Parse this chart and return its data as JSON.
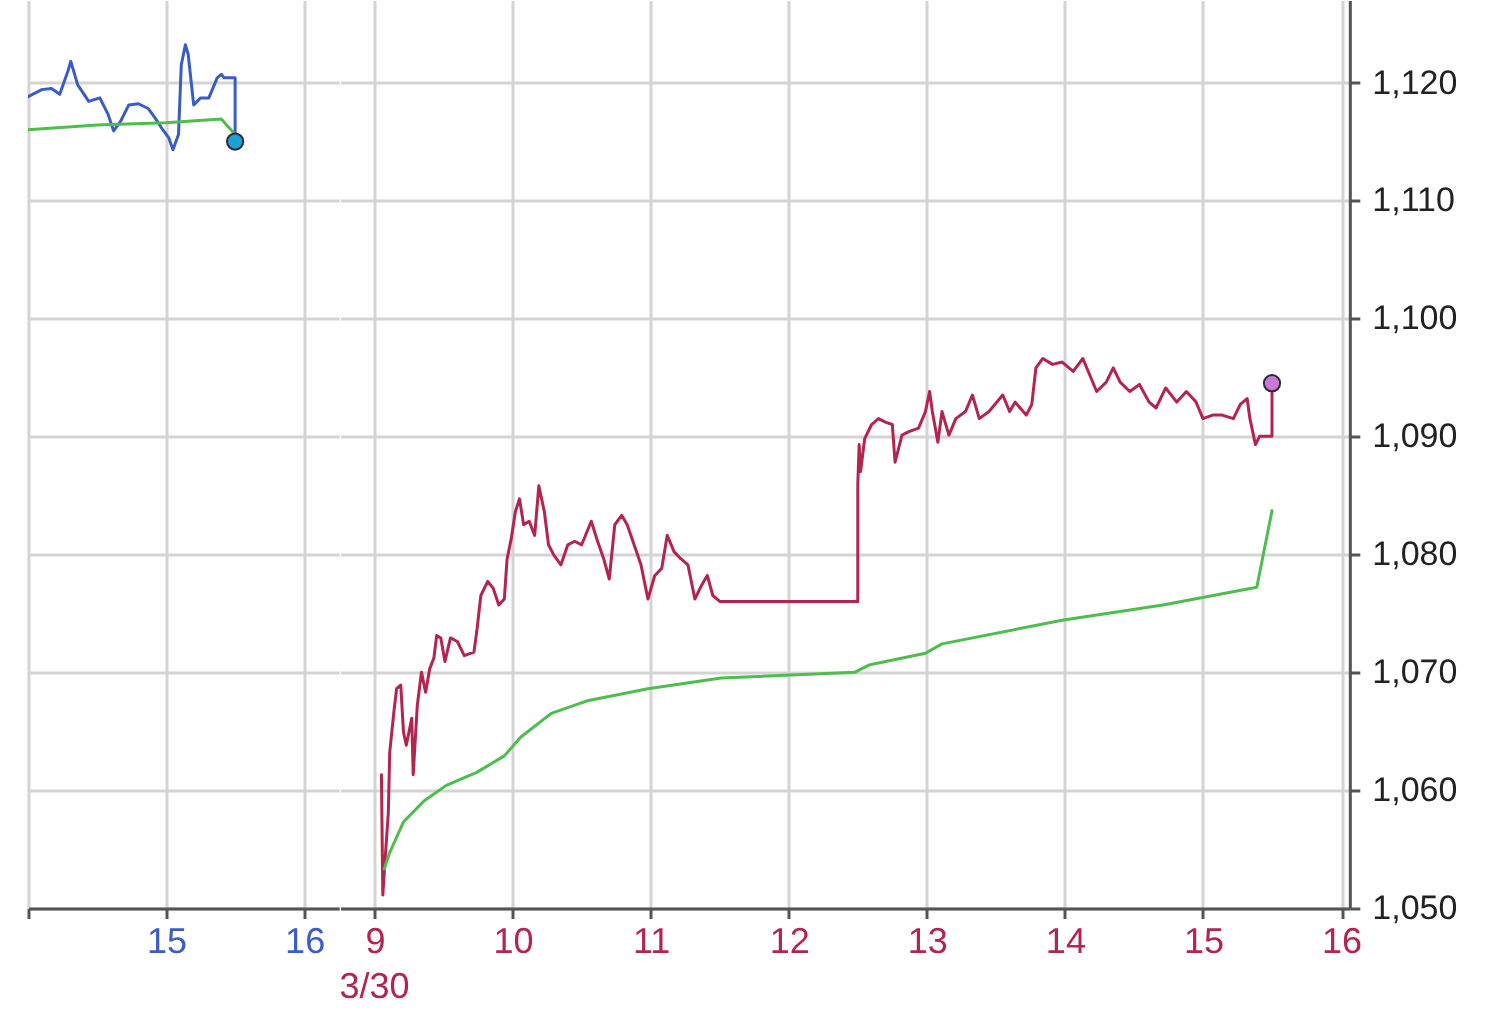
{
  "chart_data": [
    {
      "type": "line",
      "xlim": [
        14,
        16.25
      ],
      "xticks": [
        {
          "value": 14,
          "label": null
        },
        15,
        16
      ],
      "ylim": [
        1050,
        1127
      ],
      "yticks": [
        1050,
        1060,
        1070,
        1080,
        1090,
        1100,
        1110,
        1120
      ],
      "tick_labels": "x",
      "grid": true,
      "series": [
        {
          "color": "#3a5cc7",
          "x": [
            14.0,
            14.1,
            14.17,
            14.23,
            14.29,
            14.31,
            14.36,
            14.44,
            14.52,
            14.58,
            14.62,
            14.67,
            14.73,
            14.8,
            14.87,
            14.92,
            14.97,
            15.02,
            15.05,
            15.09,
            15.11,
            15.14,
            15.16,
            15.2,
            15.25,
            15.31,
            15.37,
            15.4,
            15.42,
            15.5,
            15.5
          ],
          "values": [
            1118.8,
            1119.4,
            1119.5,
            1119.0,
            1121.0,
            1121.8,
            1119.8,
            1118.4,
            1118.7,
            1117.3,
            1115.9,
            1116.7,
            1118.1,
            1118.2,
            1117.8,
            1117.0,
            1116.1,
            1115.3,
            1114.3,
            1115.6,
            1121.5,
            1123.2,
            1122.4,
            1118.1,
            1118.7,
            1118.7,
            1120.4,
            1120.7,
            1120.4,
            1120.4,
            1115.0
          ]
        },
        {
          "color": "#4dbd4d",
          "x": [
            14.0,
            14.5,
            15.0,
            15.4,
            15.5
          ],
          "values": [
            1116.0,
            1116.4,
            1116.6,
            1116.9,
            1115.6
          ]
        },
        {
          "type": "scatter",
          "color": "#1e9fd6",
          "x": [
            15.5
          ],
          "values": [
            1115.0
          ]
        }
      ]
    },
    {
      "type": "line",
      "xlim": [
        8.75,
        16.06
      ],
      "xticks": [
        9,
        10,
        11,
        12,
        13,
        14,
        15,
        16
      ],
      "ylim": [
        1050,
        1127
      ],
      "yticks": [
        {
          "value": 1050,
          "label": "1,050"
        },
        {
          "value": 1060,
          "label": "1,060"
        },
        {
          "value": 1070,
          "label": "1,070"
        },
        {
          "value": 1080,
          "label": "1,080"
        },
        {
          "value": 1090,
          "label": "1,090"
        },
        {
          "value": 1100,
          "label": "1,100"
        },
        {
          "value": 1110,
          "label": "1,110"
        },
        {
          "value": 1120,
          "label": "1,120"
        }
      ],
      "grid": true,
      "annotations": [
        "3/30"
      ],
      "series": [
        {
          "color": "#b3244f",
          "x": [
            9.05,
            9.06,
            9.08,
            9.1,
            9.11,
            9.14,
            9.16,
            9.19,
            9.21,
            9.23,
            9.27,
            9.28,
            9.31,
            9.34,
            9.37,
            9.4,
            9.43,
            9.45,
            9.48,
            9.51,
            9.55,
            9.6,
            9.65,
            9.72,
            9.74,
            9.77,
            9.82,
            9.86,
            9.9,
            9.94,
            9.96,
            9.99,
            10.02,
            10.05,
            10.08,
            10.12,
            10.16,
            10.19,
            10.23,
            10.26,
            10.3,
            10.35,
            10.4,
            10.45,
            10.5,
            10.57,
            10.61,
            10.66,
            10.7,
            10.74,
            10.79,
            10.83,
            10.88,
            10.93,
            10.98,
            11.03,
            11.08,
            11.12,
            11.17,
            11.22,
            11.27,
            11.32,
            11.37,
            11.41,
            11.45,
            11.5,
            12.5,
            12.5,
            12.51,
            12.52,
            12.55,
            12.6,
            12.65,
            12.7,
            12.75,
            12.77,
            12.82,
            12.87,
            12.94,
            12.99,
            13.02,
            13.04,
            13.08,
            13.11,
            13.16,
            13.21,
            13.28,
            13.33,
            13.38,
            13.45,
            13.55,
            13.6,
            13.64,
            13.72,
            13.76,
            13.79,
            13.84,
            13.91,
            13.98,
            14.06,
            14.13,
            14.18,
            14.23,
            14.3,
            14.35,
            14.4,
            14.47,
            14.54,
            14.61,
            14.66,
            14.73,
            14.81,
            14.88,
            14.95,
            15.0,
            15.07,
            15.14,
            15.22,
            15.27,
            15.32,
            15.34,
            15.38,
            15.41,
            15.5,
            15.5
          ],
          "values": [
            1061.3,
            1051.1,
            1054.7,
            1058.1,
            1063.2,
            1066.6,
            1068.6,
            1068.9,
            1064.9,
            1063.8,
            1066.1,
            1061.3,
            1067.2,
            1070.0,
            1068.3,
            1070.3,
            1071.2,
            1073.1,
            1072.9,
            1070.9,
            1072.9,
            1072.6,
            1071.4,
            1071.7,
            1073.4,
            1076.5,
            1077.7,
            1077.1,
            1075.7,
            1076.2,
            1079.6,
            1081.3,
            1083.6,
            1084.7,
            1082.5,
            1082.8,
            1081.6,
            1085.8,
            1083.6,
            1080.8,
            1079.9,
            1079.1,
            1080.8,
            1081.1,
            1080.8,
            1082.8,
            1081.3,
            1079.6,
            1077.9,
            1082.5,
            1083.3,
            1082.5,
            1080.8,
            1079.1,
            1076.2,
            1078.2,
            1078.8,
            1081.6,
            1080.2,
            1079.6,
            1079.1,
            1076.2,
            1077.4,
            1078.2,
            1076.5,
            1076.0,
            1076.0,
            1085.9,
            1089.3,
            1087.0,
            1089.8,
            1091.0,
            1091.5,
            1091.2,
            1091.0,
            1087.8,
            1090.1,
            1090.4,
            1090.7,
            1092.1,
            1093.8,
            1092.1,
            1089.5,
            1092.1,
            1090.1,
            1091.5,
            1092.1,
            1093.5,
            1091.5,
            1092.1,
            1093.5,
            1092.1,
            1092.9,
            1091.8,
            1092.7,
            1095.8,
            1096.6,
            1096.1,
            1096.3,
            1095.5,
            1096.6,
            1095.2,
            1093.8,
            1094.6,
            1095.8,
            1094.6,
            1093.8,
            1094.4,
            1092.9,
            1092.4,
            1094.1,
            1092.9,
            1093.8,
            1092.9,
            1091.5,
            1091.8,
            1091.8,
            1091.5,
            1092.7,
            1093.2,
            1091.5,
            1089.3,
            1090.0,
            1090.0,
            1094.5
          ]
        },
        {
          "color": "#4dbd4d",
          "x": [
            9.07,
            9.11,
            9.21,
            9.36,
            9.52,
            9.74,
            9.94,
            10.06,
            10.28,
            10.55,
            10.98,
            11.51,
            12.48,
            12.58,
            12.99,
            13.11,
            13.98,
            14.71,
            15.39,
            15.5
          ],
          "values": [
            1053.3,
            1054.7,
            1057.3,
            1059.1,
            1060.4,
            1061.5,
            1062.9,
            1064.5,
            1066.5,
            1067.6,
            1068.6,
            1069.5,
            1070.0,
            1070.6,
            1071.6,
            1072.4,
            1074.4,
            1075.7,
            1077.2,
            1083.7
          ]
        },
        {
          "type": "scatter",
          "color": "#c87ad6",
          "x": [
            15.5
          ],
          "values": [
            1094.5
          ]
        }
      ]
    }
  ]
}
